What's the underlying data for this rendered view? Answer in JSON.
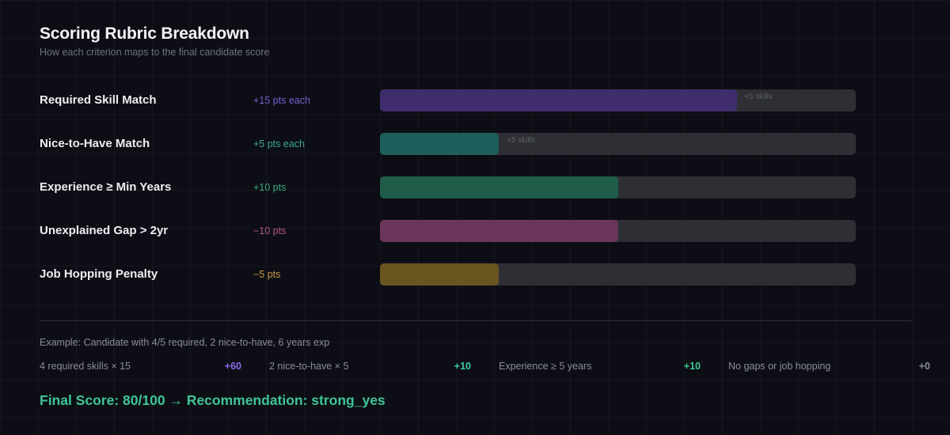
{
  "header": {
    "title": "Scoring Rubric Breakdown",
    "subtitle": "How each criterion maps to the final candidate score"
  },
  "rows": [
    {
      "label": "Required Skill Match",
      "points": "+15 pts each",
      "points_color": "#7b5ed3",
      "fill_color": "#3f2d6e",
      "fill_pct": 75,
      "note": "×5 skills"
    },
    {
      "label": "Nice-to-Have Match",
      "points": "+5 pts each",
      "points_color": "#3aa893",
      "fill_color": "#1e5e5b",
      "fill_pct": 25,
      "note": "×5 skills"
    },
    {
      "label": "Experience ≥ Min Years",
      "points": "+10 pts",
      "points_color": "#3aa87e",
      "fill_color": "#1f5c4a",
      "fill_pct": 50,
      "note": ""
    },
    {
      "label": "Unexplained Gap > 2yr",
      "points": "−10 pts",
      "points_color": "#b0588e",
      "fill_color": "#6a3659",
      "fill_pct": 50,
      "note": ""
    },
    {
      "label": "Job Hopping Penalty",
      "points": "−5 pts",
      "points_color": "#c99a3e",
      "fill_color": "#6b5520",
      "fill_pct": 25,
      "note": ""
    }
  ],
  "example": {
    "intro": "Example: Candidate with 4/5 required, 2 nice-to-have, 6 years exp",
    "items": [
      {
        "label": "4 required skills × 15",
        "value": "+60",
        "color": "#8a68ee"
      },
      {
        "label": "2 nice-to-have × 5",
        "value": "+10",
        "color": "#3ec9b0"
      },
      {
        "label": "Experience ≥ 5 years",
        "value": "+10",
        "color": "#3ec98e"
      },
      {
        "label": "No gaps or job hopping",
        "value": "+0",
        "color": "#8a8c98"
      }
    ]
  },
  "final": {
    "text": "Final Score: 80/100 → Recommendation: strong_yes",
    "color": "#3fc596"
  },
  "chart_data": {
    "type": "bar",
    "title": "Scoring Rubric Breakdown",
    "subtitle": "How each criterion maps to the final candidate score",
    "orientation": "horizontal",
    "categories": [
      "Required Skill Match",
      "Nice-to-Have Match",
      "Experience ≥ Min Years",
      "Unexplained Gap > 2yr",
      "Job Hopping Penalty"
    ],
    "values": [
      75,
      25,
      50,
      50,
      25
    ],
    "value_labels": [
      "+15 pts each",
      "+5 pts each",
      "+10 pts",
      "−10 pts",
      "−5 pts"
    ],
    "annotations": [
      "×5 skills",
      "×5 skills",
      "",
      "",
      ""
    ],
    "xlim": [
      0,
      100
    ],
    "xlabel": "",
    "ylabel": "",
    "grid": true,
    "legend": "none",
    "example_breakdown": [
      {
        "label": "4 required skills × 15",
        "value": 60
      },
      {
        "label": "2 nice-to-have × 5",
        "value": 10
      },
      {
        "label": "Experience ≥ 5 years",
        "value": 10
      },
      {
        "label": "No gaps or job hopping",
        "value": 0
      }
    ],
    "final_score": 80,
    "max_score": 100,
    "recommendation": "strong_yes"
  }
}
